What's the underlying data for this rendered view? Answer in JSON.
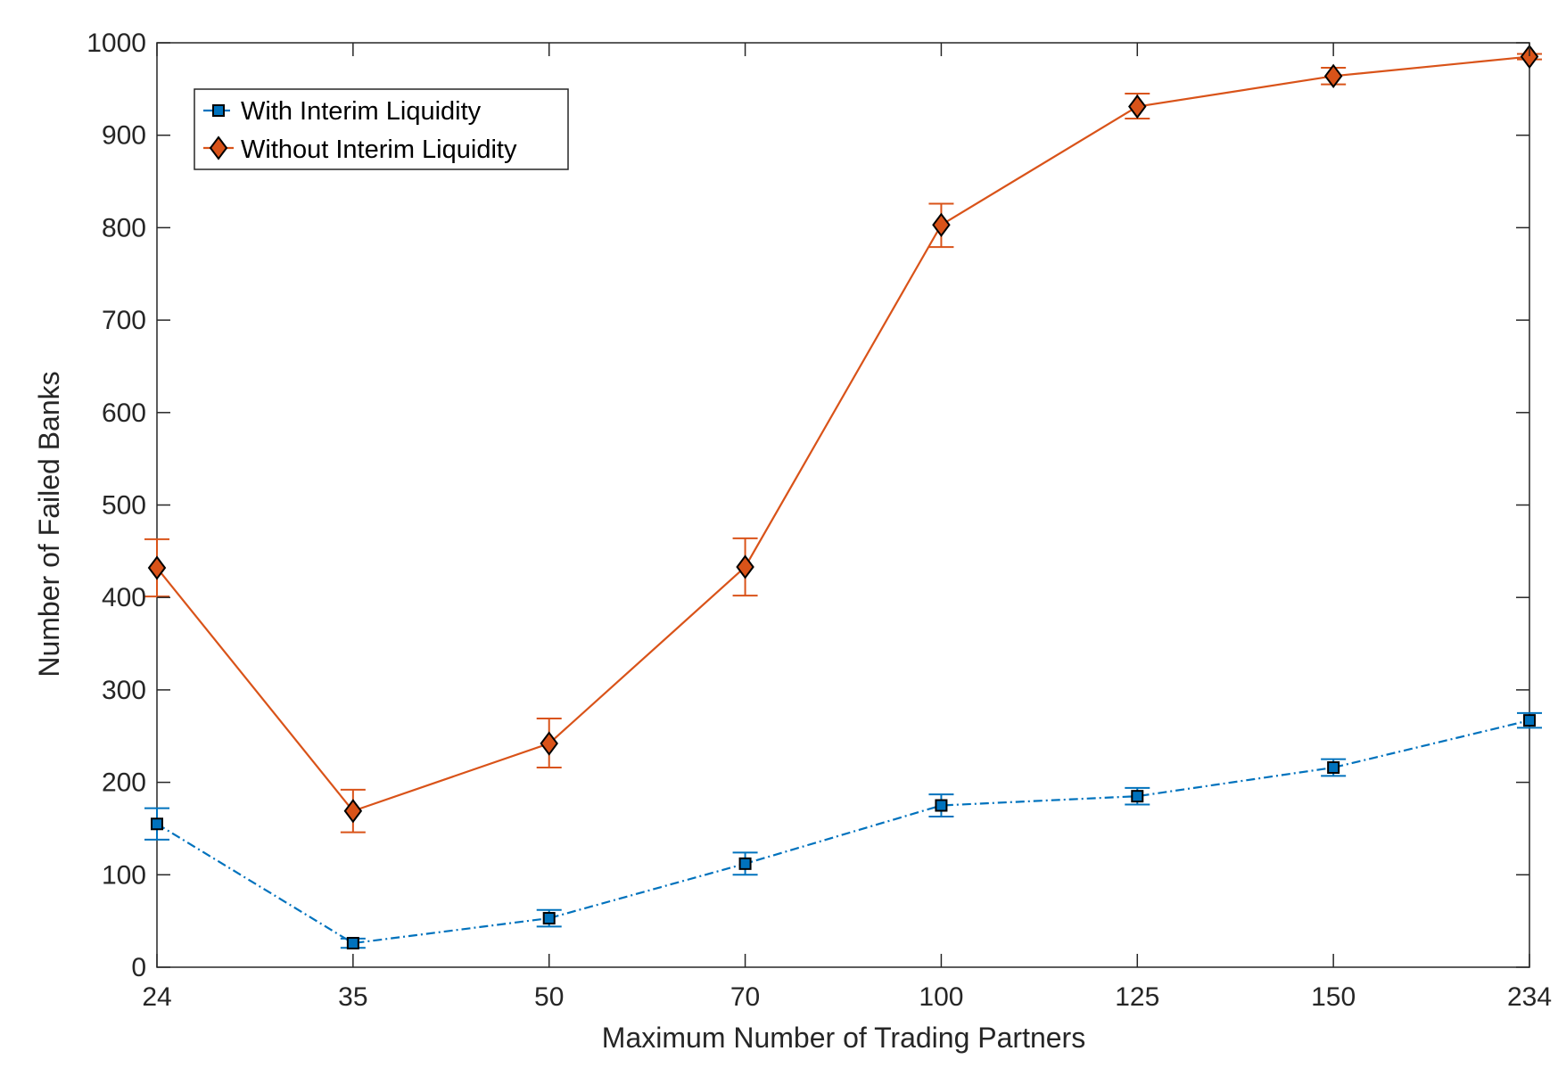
{
  "chart_data": {
    "type": "line",
    "xlabel": "Maximum Number of Trading Partners",
    "ylabel": "Number of Failed Banks",
    "categories": [
      "24",
      "35",
      "50",
      "70",
      "100",
      "125",
      "150",
      "234"
    ],
    "ylim": [
      0,
      1000
    ],
    "yticks": [
      0,
      100,
      200,
      300,
      400,
      500,
      600,
      700,
      800,
      900,
      1000
    ],
    "grid": false,
    "legend_position": "top-left",
    "series": [
      {
        "name": "With Interim Liquidity",
        "color": "#0072BD",
        "marker": "square",
        "line_style": "dash-dot",
        "values": [
          155,
          26,
          53,
          112,
          175,
          185,
          216,
          267
        ],
        "error_low": [
          138,
          21,
          44,
          100,
          163,
          176,
          207,
          259
        ],
        "error_high": [
          172,
          31,
          62,
          124,
          187,
          194,
          225,
          275
        ]
      },
      {
        "name": "Without Interim Liquidity",
        "color": "#D95319",
        "marker": "diamond",
        "line_style": "solid",
        "values": [
          432,
          169,
          242,
          433,
          803,
          931,
          964,
          985
        ],
        "error_low": [
          401,
          146,
          216,
          402,
          779,
          918,
          955,
          982
        ],
        "error_high": [
          463,
          192,
          269,
          464,
          826,
          945,
          973,
          988
        ]
      }
    ]
  }
}
